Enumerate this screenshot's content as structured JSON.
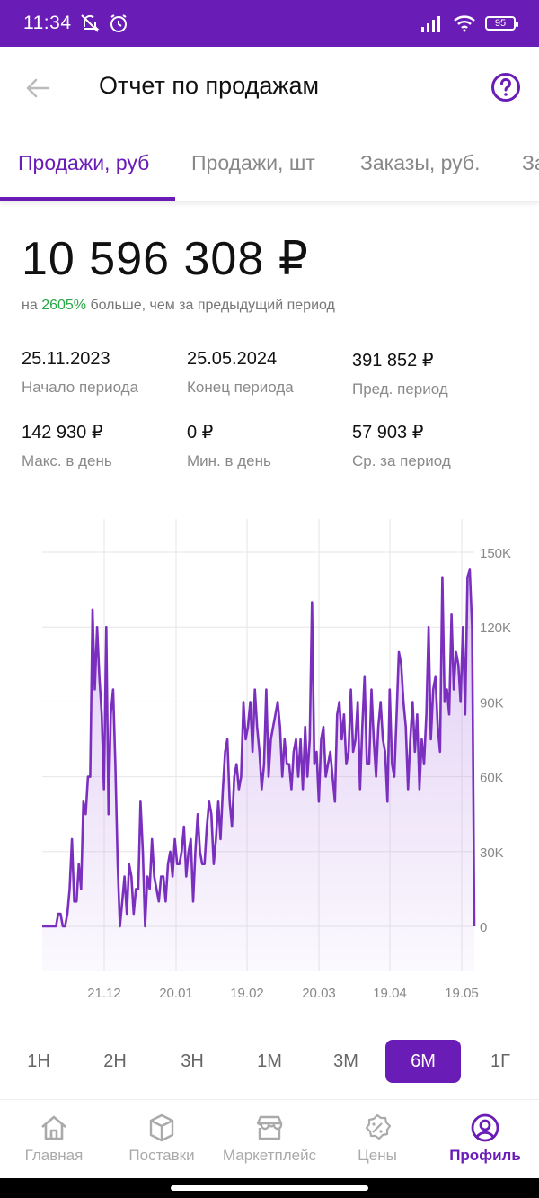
{
  "status": {
    "time": "11:34",
    "battery": "95"
  },
  "header": {
    "title": "Отчет по продажам"
  },
  "tabs": [
    "Продажи, руб",
    "Продажи, шт",
    "Заказы, руб.",
    "За"
  ],
  "summary": {
    "total": "10 596 308 ₽",
    "compare_prefix": "на",
    "compare_pct": "2605%",
    "compare_suffix": "больше, чем за предыдущий период"
  },
  "stats": [
    {
      "value": "25.11.2023",
      "label": "Начало периода"
    },
    {
      "value": "25.05.2024",
      "label": "Конец периода"
    },
    {
      "value": "391 852 ₽",
      "label": "Пред. период"
    },
    {
      "value": "142 930 ₽",
      "label": "Макс. в день"
    },
    {
      "value": "0 ₽",
      "label": "Мин. в день"
    },
    {
      "value": "57 903 ₽",
      "label": "Ср. за период"
    }
  ],
  "chart_data": {
    "type": "area",
    "x_ticks": [
      "21.12",
      "20.01",
      "19.02",
      "20.03",
      "19.04",
      "19.05"
    ],
    "y_ticks": [
      "0",
      "30K",
      "60K",
      "90K",
      "120K",
      "150K"
    ],
    "ylim": [
      0,
      150000
    ],
    "grid": true,
    "line_color": "#7b2fbe",
    "values": [
      0,
      0,
      0,
      0,
      0,
      0,
      0,
      5000,
      5000,
      0,
      0,
      5000,
      15000,
      35000,
      10000,
      10000,
      25000,
      15000,
      50000,
      45000,
      60000,
      60000,
      127000,
      95000,
      120000,
      100000,
      85000,
      55000,
      120000,
      45000,
      85000,
      95000,
      65000,
      25000,
      0,
      10000,
      20000,
      5000,
      25000,
      20000,
      5000,
      15000,
      15000,
      50000,
      30000,
      0,
      20000,
      15000,
      35000,
      20000,
      15000,
      10000,
      20000,
      20000,
      10000,
      25000,
      30000,
      20000,
      35000,
      25000,
      25000,
      30000,
      40000,
      20000,
      30000,
      35000,
      10000,
      30000,
      45000,
      30000,
      25000,
      25000,
      40000,
      50000,
      45000,
      25000,
      35000,
      50000,
      35000,
      55000,
      70000,
      75000,
      50000,
      40000,
      60000,
      65000,
      55000,
      60000,
      90000,
      75000,
      80000,
      90000,
      70000,
      95000,
      80000,
      70000,
      55000,
      65000,
      95000,
      60000,
      75000,
      80000,
      85000,
      90000,
      80000,
      60000,
      75000,
      65000,
      65000,
      55000,
      70000,
      75000,
      60000,
      75000,
      55000,
      80000,
      60000,
      75000,
      130000,
      65000,
      70000,
      50000,
      75000,
      80000,
      60000,
      65000,
      70000,
      60000,
      50000,
      85000,
      90000,
      75000,
      85000,
      65000,
      70000,
      95000,
      70000,
      75000,
      90000,
      55000,
      80000,
      100000,
      65000,
      65000,
      95000,
      75000,
      60000,
      80000,
      90000,
      75000,
      70000,
      50000,
      95000,
      65000,
      60000,
      85000,
      110000,
      105000,
      90000,
      80000,
      55000,
      75000,
      90000,
      70000,
      85000,
      55000,
      75000,
      65000,
      85000,
      120000,
      75000,
      95000,
      100000,
      80000,
      70000,
      140000,
      90000,
      95000,
      85000,
      125000,
      95000,
      110000,
      105000,
      90000,
      120000,
      85000,
      140000,
      143000,
      120000,
      0
    ]
  },
  "periods": {
    "items": [
      "1Н",
      "2Н",
      "3Н",
      "1М",
      "3М",
      "6М",
      "1Г"
    ],
    "active": "6М"
  },
  "nav": [
    {
      "label": "Главная",
      "icon": "home-icon"
    },
    {
      "label": "Поставки",
      "icon": "box-icon"
    },
    {
      "label": "Маркетплейс",
      "icon": "store-icon"
    },
    {
      "label": "Цены",
      "icon": "percent-badge-icon"
    },
    {
      "label": "Профиль",
      "icon": "profile-icon"
    }
  ]
}
